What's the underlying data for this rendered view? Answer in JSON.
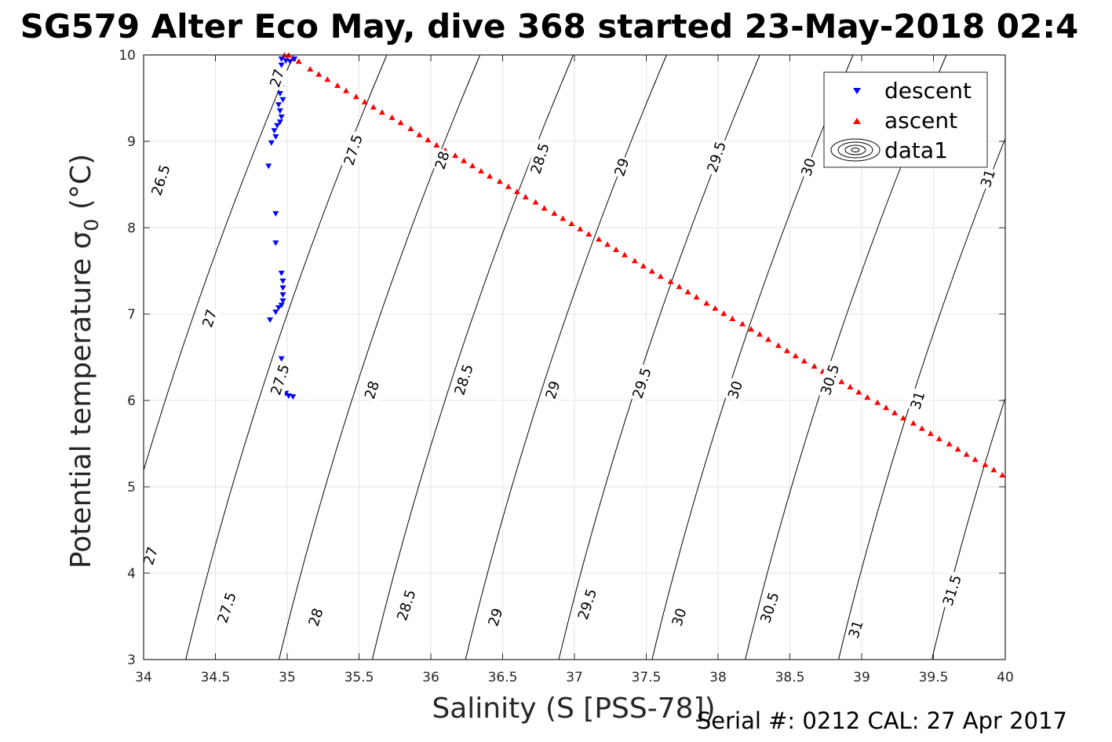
{
  "footer": {
    "serial_cal": "Serial #: 0212  CAL: 27 Apr 2017"
  },
  "chart_data": {
    "type": "scatter",
    "title": "SG579 Alter Eco May, dive 368 started 23-May-2018 02:4",
    "xlabel": "Salinity (S [PSS-78])",
    "ylabel": "Potential temperature σ",
    "ylabel_subscript": "0",
    "ylabel_suffix": " (°C)",
    "xlim": [
      34,
      40
    ],
    "ylim": [
      3,
      10
    ],
    "xticks": [
      34,
      34.5,
      35,
      35.5,
      36,
      36.5,
      37,
      37.5,
      38,
      38.5,
      39,
      39.5,
      40
    ],
    "xtick_labels": [
      "34",
      "34.5",
      "35",
      "35.5",
      "36",
      "36.5",
      "37",
      "37.5",
      "38",
      "38.5",
      "39",
      "39.5",
      "40"
    ],
    "yticks": [
      3,
      4,
      5,
      6,
      7,
      8,
      9,
      10
    ],
    "ytick_labels": [
      "3",
      "4",
      "5",
      "6",
      "7",
      "8",
      "9",
      "10"
    ],
    "grid": true,
    "legend_position": "top-right",
    "colors": {
      "descent": "#0000ff",
      "ascent": "#ff0000",
      "contour": "#000000",
      "grid": "#e6e6e6",
      "axis": "#262626"
    },
    "series": [
      {
        "name": "descent",
        "marker": "triangle-down",
        "color": "#0000ff",
        "points": [
          [
            34.96,
            9.95
          ],
          [
            34.99,
            9.93
          ],
          [
            35.02,
            9.92
          ],
          [
            35.05,
            9.95
          ],
          [
            34.96,
            9.88
          ],
          [
            34.95,
            9.7
          ],
          [
            34.96,
            9.62
          ],
          [
            34.95,
            9.55
          ],
          [
            34.97,
            9.48
          ],
          [
            34.94,
            9.42
          ],
          [
            34.95,
            9.35
          ],
          [
            34.96,
            9.28
          ],
          [
            34.95,
            9.22
          ],
          [
            34.93,
            9.18
          ],
          [
            34.91,
            9.12
          ],
          [
            34.92,
            9.05
          ],
          [
            34.89,
            8.98
          ],
          [
            34.87,
            8.71
          ],
          [
            34.92,
            8.16
          ],
          [
            34.92,
            7.82
          ],
          [
            34.96,
            7.47
          ],
          [
            34.97,
            7.38
          ],
          [
            34.97,
            7.3
          ],
          [
            34.97,
            7.22
          ],
          [
            34.97,
            7.15
          ],
          [
            34.96,
            7.1
          ],
          [
            34.94,
            7.07
          ],
          [
            34.92,
            7.02
          ],
          [
            34.88,
            6.93
          ],
          [
            34.96,
            6.48
          ],
          [
            34.96,
            6.35
          ],
          [
            34.97,
            6.25
          ],
          [
            34.98,
            6.15
          ],
          [
            34.99,
            6.08
          ],
          [
            35.01,
            6.05
          ],
          [
            35.04,
            6.04
          ]
        ]
      },
      {
        "name": "ascent",
        "marker": "triangle-up",
        "color": "#ff0000",
        "points": [
          [
            34.98,
            10.0
          ],
          [
            35.01,
            10.0
          ],
          [
            35.04,
            9.96
          ],
          [
            35.08,
            9.93
          ],
          [
            35.16,
            9.84
          ],
          [
            35.22,
            9.78
          ],
          [
            35.28,
            9.72
          ],
          [
            35.35,
            9.65
          ],
          [
            35.41,
            9.59
          ],
          [
            35.48,
            9.52
          ],
          [
            35.54,
            9.46
          ],
          [
            35.6,
            9.4
          ],
          [
            35.66,
            9.34
          ],
          [
            35.73,
            9.28
          ],
          [
            35.79,
            9.22
          ],
          [
            35.86,
            9.15
          ],
          [
            35.92,
            9.08
          ],
          [
            35.98,
            9.02
          ],
          [
            36.04,
            8.96
          ],
          [
            36.1,
            8.9
          ],
          [
            36.17,
            8.84
          ],
          [
            36.23,
            8.78
          ],
          [
            36.29,
            8.72
          ],
          [
            36.35,
            8.66
          ],
          [
            36.41,
            8.6
          ],
          [
            36.48,
            8.54
          ],
          [
            36.54,
            8.48
          ],
          [
            36.6,
            8.42
          ],
          [
            36.66,
            8.36
          ],
          [
            36.73,
            8.3
          ],
          [
            36.79,
            8.23
          ],
          [
            36.86,
            8.17
          ],
          [
            36.92,
            8.11
          ],
          [
            36.98,
            8.05
          ],
          [
            37.04,
            7.99
          ],
          [
            37.1,
            7.93
          ],
          [
            37.17,
            7.87
          ],
          [
            37.23,
            7.81
          ],
          [
            37.29,
            7.75
          ],
          [
            37.35,
            7.69
          ],
          [
            37.42,
            7.62
          ],
          [
            37.48,
            7.56
          ],
          [
            37.54,
            7.5
          ],
          [
            37.6,
            7.44
          ],
          [
            37.67,
            7.38
          ],
          [
            37.73,
            7.32
          ],
          [
            37.79,
            7.26
          ],
          [
            37.85,
            7.2
          ],
          [
            37.92,
            7.13
          ],
          [
            37.98,
            7.07
          ],
          [
            38.04,
            7.01
          ],
          [
            38.1,
            6.95
          ],
          [
            38.17,
            6.89
          ],
          [
            38.23,
            6.83
          ],
          [
            38.29,
            6.77
          ],
          [
            38.35,
            6.71
          ],
          [
            38.42,
            6.64
          ],
          [
            38.48,
            6.58
          ],
          [
            38.54,
            6.52
          ],
          [
            38.6,
            6.46
          ],
          [
            38.67,
            6.4
          ],
          [
            38.73,
            6.34
          ],
          [
            38.79,
            6.28
          ],
          [
            38.86,
            6.22
          ],
          [
            38.92,
            6.16
          ],
          [
            38.98,
            6.1
          ],
          [
            39.04,
            6.04
          ],
          [
            39.11,
            5.98
          ],
          [
            39.17,
            5.92
          ],
          [
            39.23,
            5.86
          ],
          [
            39.29,
            5.8
          ],
          [
            39.36,
            5.74
          ],
          [
            39.42,
            5.68
          ],
          [
            39.48,
            5.62
          ],
          [
            39.54,
            5.56
          ],
          [
            39.61,
            5.5
          ],
          [
            39.67,
            5.44
          ],
          [
            39.73,
            5.38
          ],
          [
            39.79,
            5.32
          ],
          [
            39.86,
            5.26
          ],
          [
            39.92,
            5.2
          ],
          [
            39.98,
            5.14
          ]
        ]
      },
      {
        "name": "data1",
        "type": "contour",
        "color": "#000000",
        "levels": [
          26.5,
          27,
          27.5,
          28,
          28.5,
          29,
          29.5,
          30,
          30.5,
          31,
          31.5
        ]
      }
    ],
    "contour_labels": [
      {
        "text": "26.5",
        "x": 34.12,
        "y": 8.55,
        "angle": -72
      },
      {
        "text": "27",
        "x": 34.46,
        "y": 6.95,
        "angle": -72
      },
      {
        "text": "27",
        "x": 34.05,
        "y": 4.2,
        "angle": -72
      },
      {
        "text": "27",
        "x": 34.93,
        "y": 9.73,
        "angle": -72
      },
      {
        "text": "27.5",
        "x": 35.46,
        "y": 8.9,
        "angle": -72
      },
      {
        "text": "27.5",
        "x": 34.95,
        "y": 6.24,
        "angle": -72
      },
      {
        "text": "27.5",
        "x": 34.58,
        "y": 3.6,
        "angle": -72
      },
      {
        "text": "28",
        "x": 36.08,
        "y": 8.78,
        "angle": -72
      },
      {
        "text": "28",
        "x": 35.59,
        "y": 6.12,
        "angle": -72
      },
      {
        "text": "28",
        "x": 35.2,
        "y": 3.49,
        "angle": -72
      },
      {
        "text": "28.5",
        "x": 36.76,
        "y": 8.8,
        "angle": -72
      },
      {
        "text": "28.5",
        "x": 36.23,
        "y": 6.24,
        "angle": -72
      },
      {
        "text": "28.5",
        "x": 35.83,
        "y": 3.63,
        "angle": -72
      },
      {
        "text": "29",
        "x": 37.33,
        "y": 8.7,
        "angle": -72
      },
      {
        "text": "29",
        "x": 36.85,
        "y": 6.12,
        "angle": -72
      },
      {
        "text": "29",
        "x": 36.45,
        "y": 3.49,
        "angle": -72
      },
      {
        "text": "29.5",
        "x": 37.99,
        "y": 8.82,
        "angle": -72
      },
      {
        "text": "29.5",
        "x": 37.47,
        "y": 6.2,
        "angle": -72
      },
      {
        "text": "29.5",
        "x": 37.09,
        "y": 3.64,
        "angle": -72
      },
      {
        "text": "30",
        "x": 38.63,
        "y": 8.7,
        "angle": -72
      },
      {
        "text": "30",
        "x": 38.12,
        "y": 6.12,
        "angle": -72
      },
      {
        "text": "30",
        "x": 37.73,
        "y": 3.49,
        "angle": -72
      },
      {
        "text": "30.5",
        "x": 38.78,
        "y": 6.24,
        "angle": -72
      },
      {
        "text": "30.5",
        "x": 38.36,
        "y": 3.6,
        "angle": -72
      },
      {
        "text": "31",
        "x": 39.88,
        "y": 8.57,
        "angle": -72
      },
      {
        "text": "31",
        "x": 39.39,
        "y": 6.0,
        "angle": -72
      },
      {
        "text": "31",
        "x": 38.96,
        "y": 3.35,
        "angle": -72
      },
      {
        "text": "31.5",
        "x": 39.63,
        "y": 3.8,
        "angle": -72
      }
    ],
    "legend_entries": [
      "descent",
      "ascent",
      "data1"
    ]
  }
}
